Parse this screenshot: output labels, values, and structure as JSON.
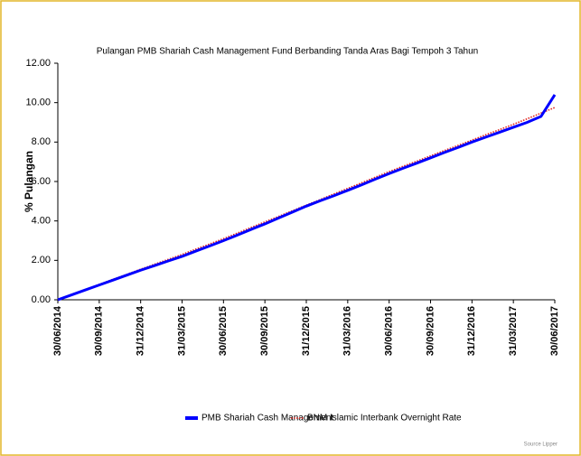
{
  "chart_data": {
    "type": "line",
    "title": "Pulangan PMB Shariah Cash Management Fund Berbanding Tanda Aras Bagi Tempoh 3 Tahun",
    "y_label": "% Pulangan",
    "source": "Source Lipper",
    "categories": [
      "30/06/2014",
      null,
      null,
      "30/09/2014",
      null,
      null,
      "31/12/2014",
      null,
      null,
      "31/03/2015",
      null,
      null,
      "30/06/2015",
      null,
      null,
      "30/09/2015",
      null,
      null,
      "31/12/2015",
      null,
      null,
      "31/03/2016",
      null,
      null,
      "30/06/2016",
      null,
      null,
      "30/09/2016",
      null,
      null,
      "31/12/2016",
      null,
      null,
      "31/03/2017",
      null,
      null,
      "30/06/2017"
    ],
    "series": [
      {
        "name": "PMB Shariah Cash Management",
        "color": "#0000ff",
        "style": "solid",
        "values": [
          0,
          0.25,
          0.5,
          0.75,
          1.0,
          1.25,
          1.5,
          1.73,
          1.97,
          2.2,
          2.47,
          2.73,
          3.0,
          3.28,
          3.57,
          3.85,
          4.15,
          4.45,
          4.75,
          5.02,
          5.28,
          5.55,
          5.83,
          6.12,
          6.4,
          6.67,
          6.93,
          7.2,
          7.47,
          7.73,
          8.0,
          8.25,
          8.5,
          8.75,
          9.0,
          9.3,
          10.4
        ]
      },
      {
        "name": "BNM Islamic Interbank Overnight Rate",
        "color": "#e0201a",
        "style": "dotted",
        "values": [
          0,
          0.26,
          0.52,
          0.78,
          1.04,
          1.29,
          1.55,
          1.8,
          2.05,
          2.3,
          2.57,
          2.83,
          3.1,
          3.38,
          3.67,
          3.95,
          4.23,
          4.52,
          4.8,
          5.08,
          5.37,
          5.65,
          5.93,
          6.22,
          6.5,
          6.77,
          7.03,
          7.3,
          7.57,
          7.83,
          8.1,
          8.37,
          8.63,
          8.9,
          9.18,
          9.47,
          9.75
        ]
      }
    ],
    "ylim": [
      0,
      12
    ],
    "yticks": [
      {
        "value": 0,
        "label": "0.00"
      },
      {
        "value": 2,
        "label": "2.00"
      },
      {
        "value": 4,
        "label": "4.00"
      },
      {
        "value": 6,
        "label": "6.00"
      },
      {
        "value": 8,
        "label": "8.00"
      },
      {
        "value": 10,
        "label": "10.00"
      },
      {
        "value": 12,
        "label": "12.00"
      }
    ],
    "legend": "bottom"
  }
}
